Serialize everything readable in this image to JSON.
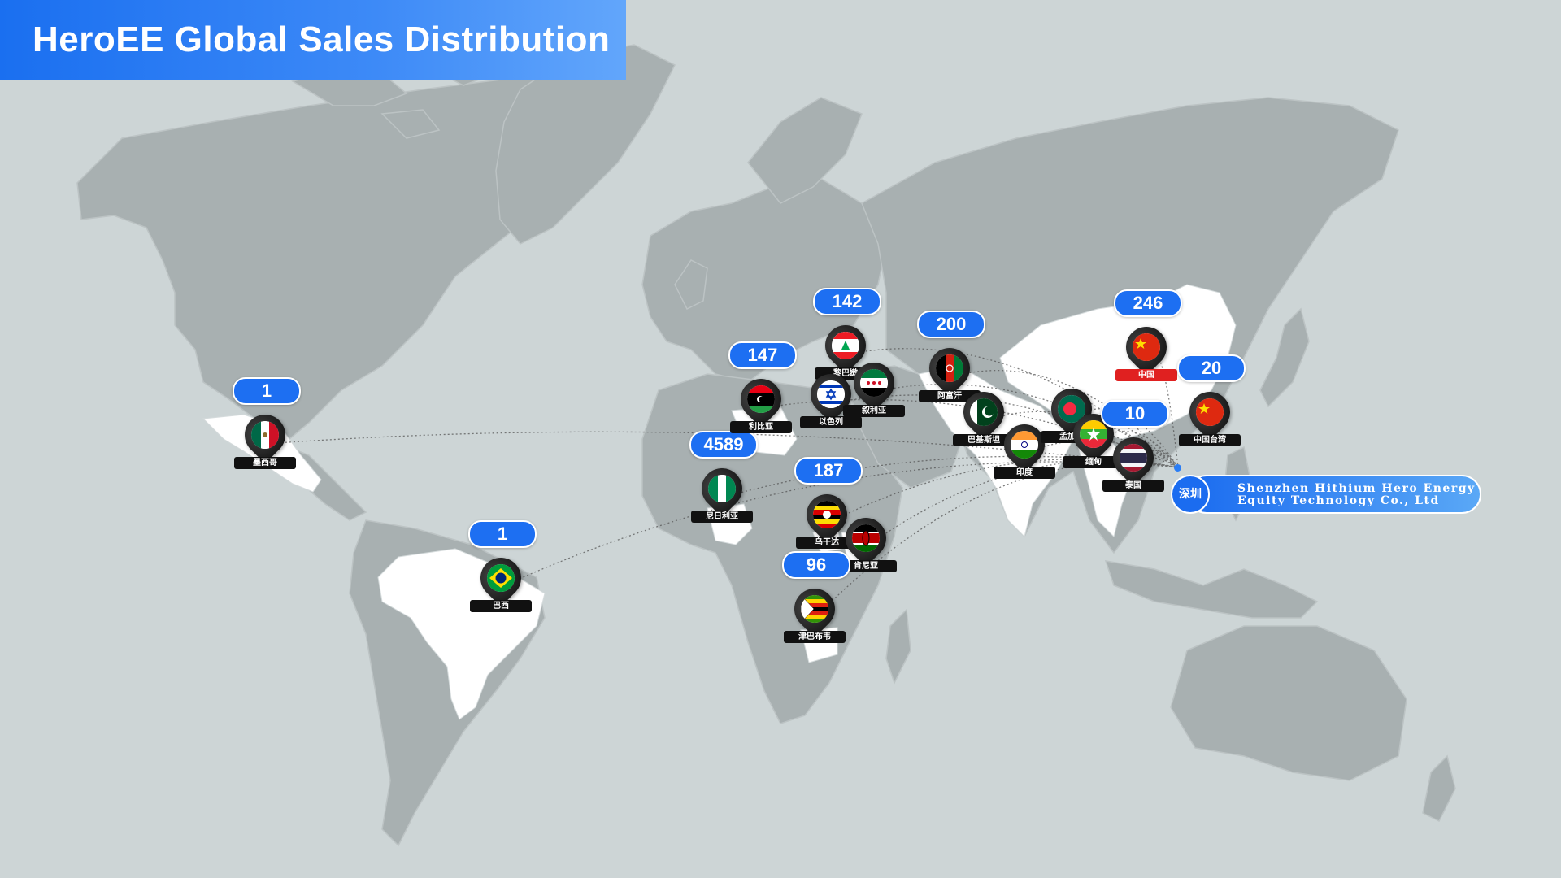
{
  "title": "HeroEE Global Sales Distribution",
  "colors": {
    "background": "#cdd5d6",
    "land": "#a8b0b1",
    "highlight_land": "#ffffff",
    "accent": "#1d6ff2"
  },
  "headquarters": {
    "city": "深圳",
    "company_line1": "Shenzhen Hithium Hero Energy",
    "company_line2": "Equity Technology Co., Ltd"
  },
  "markers": [
    {
      "id": "mexico",
      "country": "墨西哥",
      "count": "1",
      "flag": "mexico-flag-icon"
    },
    {
      "id": "brazil",
      "country": "巴西",
      "count": "1",
      "flag": "brazil-flag-icon"
    },
    {
      "id": "nigeria",
      "country": "尼日利亚",
      "count": "4589",
      "flag": "nigeria-flag-icon"
    },
    {
      "id": "libya",
      "country": "利比亚",
      "count": "147",
      "flag": "libya-flag-icon"
    },
    {
      "id": "lebanon",
      "country": "黎巴嫩",
      "count": "142",
      "flag": "lebanon-flag-icon"
    },
    {
      "id": "israel",
      "country": "以色列",
      "count": "",
      "flag": "israel-flag-icon"
    },
    {
      "id": "syria",
      "country": "叙利亚",
      "count": "",
      "flag": "syria-flag-icon"
    },
    {
      "id": "uganda",
      "country": "乌干达",
      "count": "187",
      "flag": "uganda-flag-icon"
    },
    {
      "id": "kenya",
      "country": "肯尼亚",
      "count": "",
      "flag": "kenya-flag-icon"
    },
    {
      "id": "zimbabwe",
      "country": "津巴布韦",
      "count": "96",
      "flag": "zimbabwe-flag-icon"
    },
    {
      "id": "afghanistan",
      "country": "阿富汗",
      "count": "200",
      "flag": "afghanistan-flag-icon"
    },
    {
      "id": "pakistan",
      "country": "巴基斯坦",
      "count": "",
      "flag": "pakistan-flag-icon"
    },
    {
      "id": "india",
      "country": "印度",
      "count": "",
      "flag": "india-flag-icon"
    },
    {
      "id": "bangladesh",
      "country": "孟加拉",
      "count": "",
      "flag": "bangladesh-flag-icon"
    },
    {
      "id": "myanmar",
      "country": "缅甸",
      "count": "",
      "flag": "myanmar-flag-icon"
    },
    {
      "id": "thailand",
      "country": "泰国",
      "count": "10",
      "flag": "thailand-flag-icon"
    },
    {
      "id": "china",
      "country": "中国",
      "count": "246",
      "flag": "china-flag-icon"
    },
    {
      "id": "taiwan",
      "country": "中国台湾",
      "count": "20",
      "flag": "china-flag-icon"
    }
  ]
}
